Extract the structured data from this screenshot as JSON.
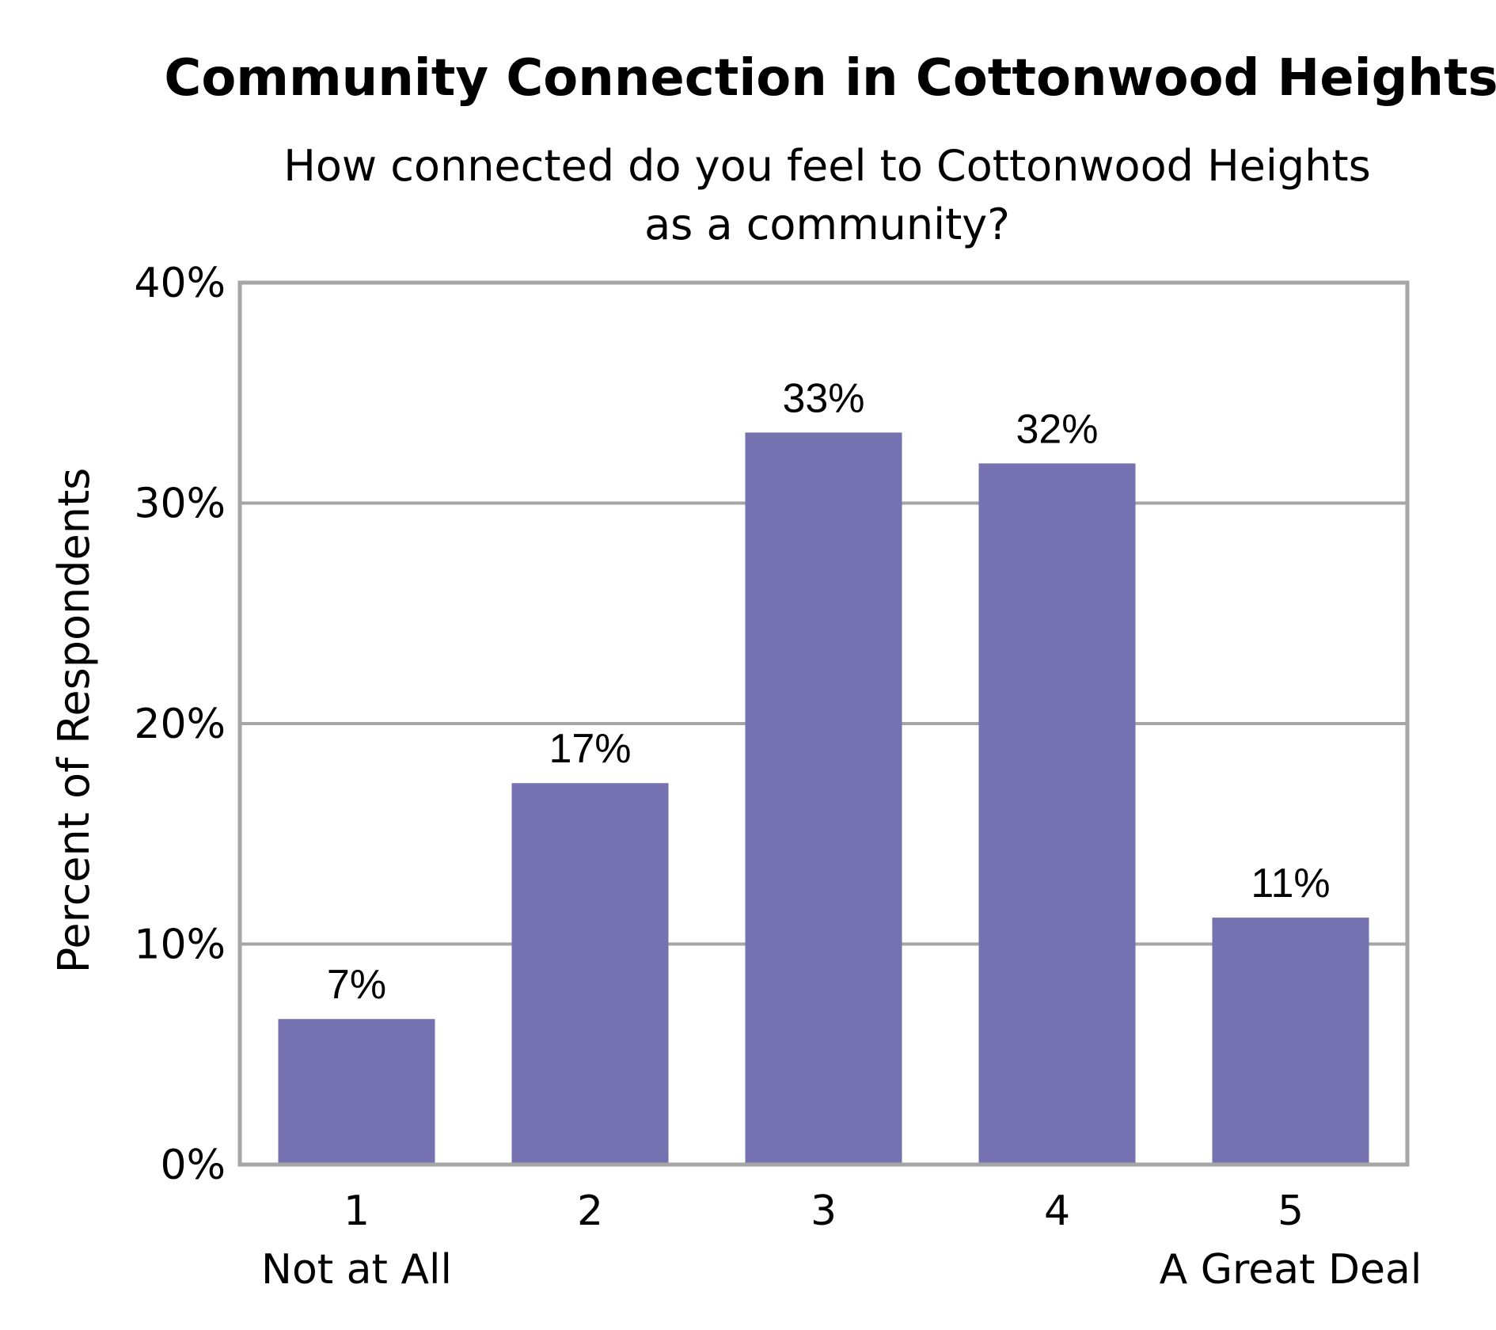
{
  "chart_data": {
    "type": "bar",
    "title": "Community Connection in Cottonwood Heights",
    "subtitle_lines": [
      "How connected do you feel to Cottonwood Heights",
      "as a community?"
    ],
    "ylabel": "Percent of Respondents",
    "xlabel": "",
    "categories": [
      "1",
      "2",
      "3",
      "4",
      "5"
    ],
    "category_sublabels": [
      "Not at All",
      "",
      "",
      "",
      "A Great Deal"
    ],
    "values": [
      6.6,
      17.3,
      33.2,
      31.8,
      11.2
    ],
    "data_labels": [
      "7%",
      "17%",
      "33%",
      "32%",
      "11%"
    ],
    "ylim": [
      0,
      40
    ],
    "yticks": [
      0,
      10,
      20,
      30,
      40
    ],
    "ytick_labels": [
      "0%",
      "10%",
      "20%",
      "30%",
      "40%"
    ],
    "grid": true,
    "legend": "none",
    "colors": {
      "bar": "#7672b2",
      "grid": "#a6a6a6",
      "frame": "#a6a6a6"
    }
  }
}
